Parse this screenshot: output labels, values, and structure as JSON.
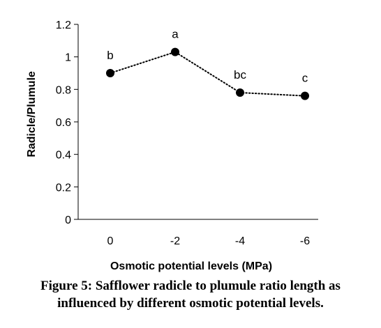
{
  "chart_data": {
    "type": "line",
    "categories": [
      "0",
      "-2",
      "-4",
      "-6"
    ],
    "series": [
      {
        "values": [
          0.9,
          1.03,
          0.78,
          0.76
        ]
      }
    ],
    "point_labels": [
      "b",
      "a",
      "bc",
      "c"
    ],
    "xlabel": "Osmotic potential levels (MPa)",
    "ylabel": "Radicle/Plumule",
    "ylim": [
      0,
      1.2
    ],
    "yticks": [
      "0",
      "0.2",
      "0.4",
      "0.6",
      "0.8",
      "1",
      "1.2"
    ],
    "grid": false,
    "line_style": "dotted",
    "marker": "filled-circle",
    "color": "#000000"
  },
  "caption": {
    "line1": "Figure 5: Safflower radicle to plumule ratio length as",
    "line2": "influenced by different osmotic potential levels."
  }
}
